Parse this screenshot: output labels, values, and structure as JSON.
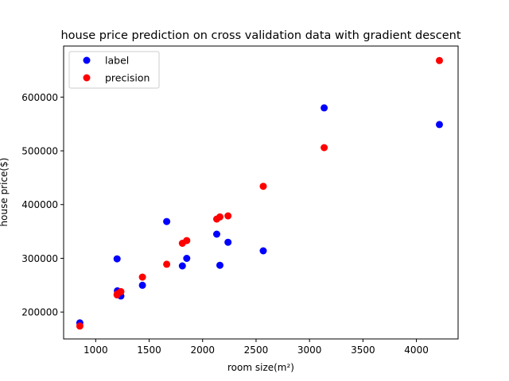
{
  "chart_data": {
    "type": "scatter",
    "title": "house price prediction on cross validation data with gradient descent",
    "xlabel": "room size(m²)",
    "ylabel": "house price($)",
    "xlim": [
      700,
      4390
    ],
    "ylim": [
      150000,
      695000
    ],
    "x_ticks": [
      1000,
      1500,
      2000,
      2500,
      3000,
      3500,
      4000
    ],
    "y_ticks": [
      200000,
      300000,
      400000,
      500000,
      600000
    ],
    "grid": false,
    "legend_position": "top-left",
    "series": [
      {
        "name": "label",
        "color": "#0000ff",
        "points": [
          [
            852,
            179900
          ],
          [
            1200,
            299000
          ],
          [
            1203,
            239500
          ],
          [
            1236,
            229900
          ],
          [
            1437,
            249900
          ],
          [
            1664,
            368500
          ],
          [
            1811,
            285900
          ],
          [
            1852,
            299900
          ],
          [
            2132,
            345000
          ],
          [
            2162,
            287000
          ],
          [
            2238,
            329900
          ],
          [
            2567,
            314000
          ],
          [
            3137,
            579900
          ],
          [
            4215,
            549000
          ]
        ]
      },
      {
        "name": "precision",
        "color": "#ff0000",
        "points": [
          [
            852,
            174000
          ],
          [
            1200,
            232000
          ],
          [
            1203,
            234000
          ],
          [
            1236,
            238000
          ],
          [
            1437,
            265000
          ],
          [
            1664,
            289000
          ],
          [
            1811,
            328000
          ],
          [
            1852,
            333000
          ],
          [
            2132,
            373000
          ],
          [
            2162,
            377000
          ],
          [
            2238,
            379000
          ],
          [
            2567,
            434000
          ],
          [
            3137,
            506000
          ],
          [
            4215,
            668000
          ]
        ]
      }
    ]
  }
}
